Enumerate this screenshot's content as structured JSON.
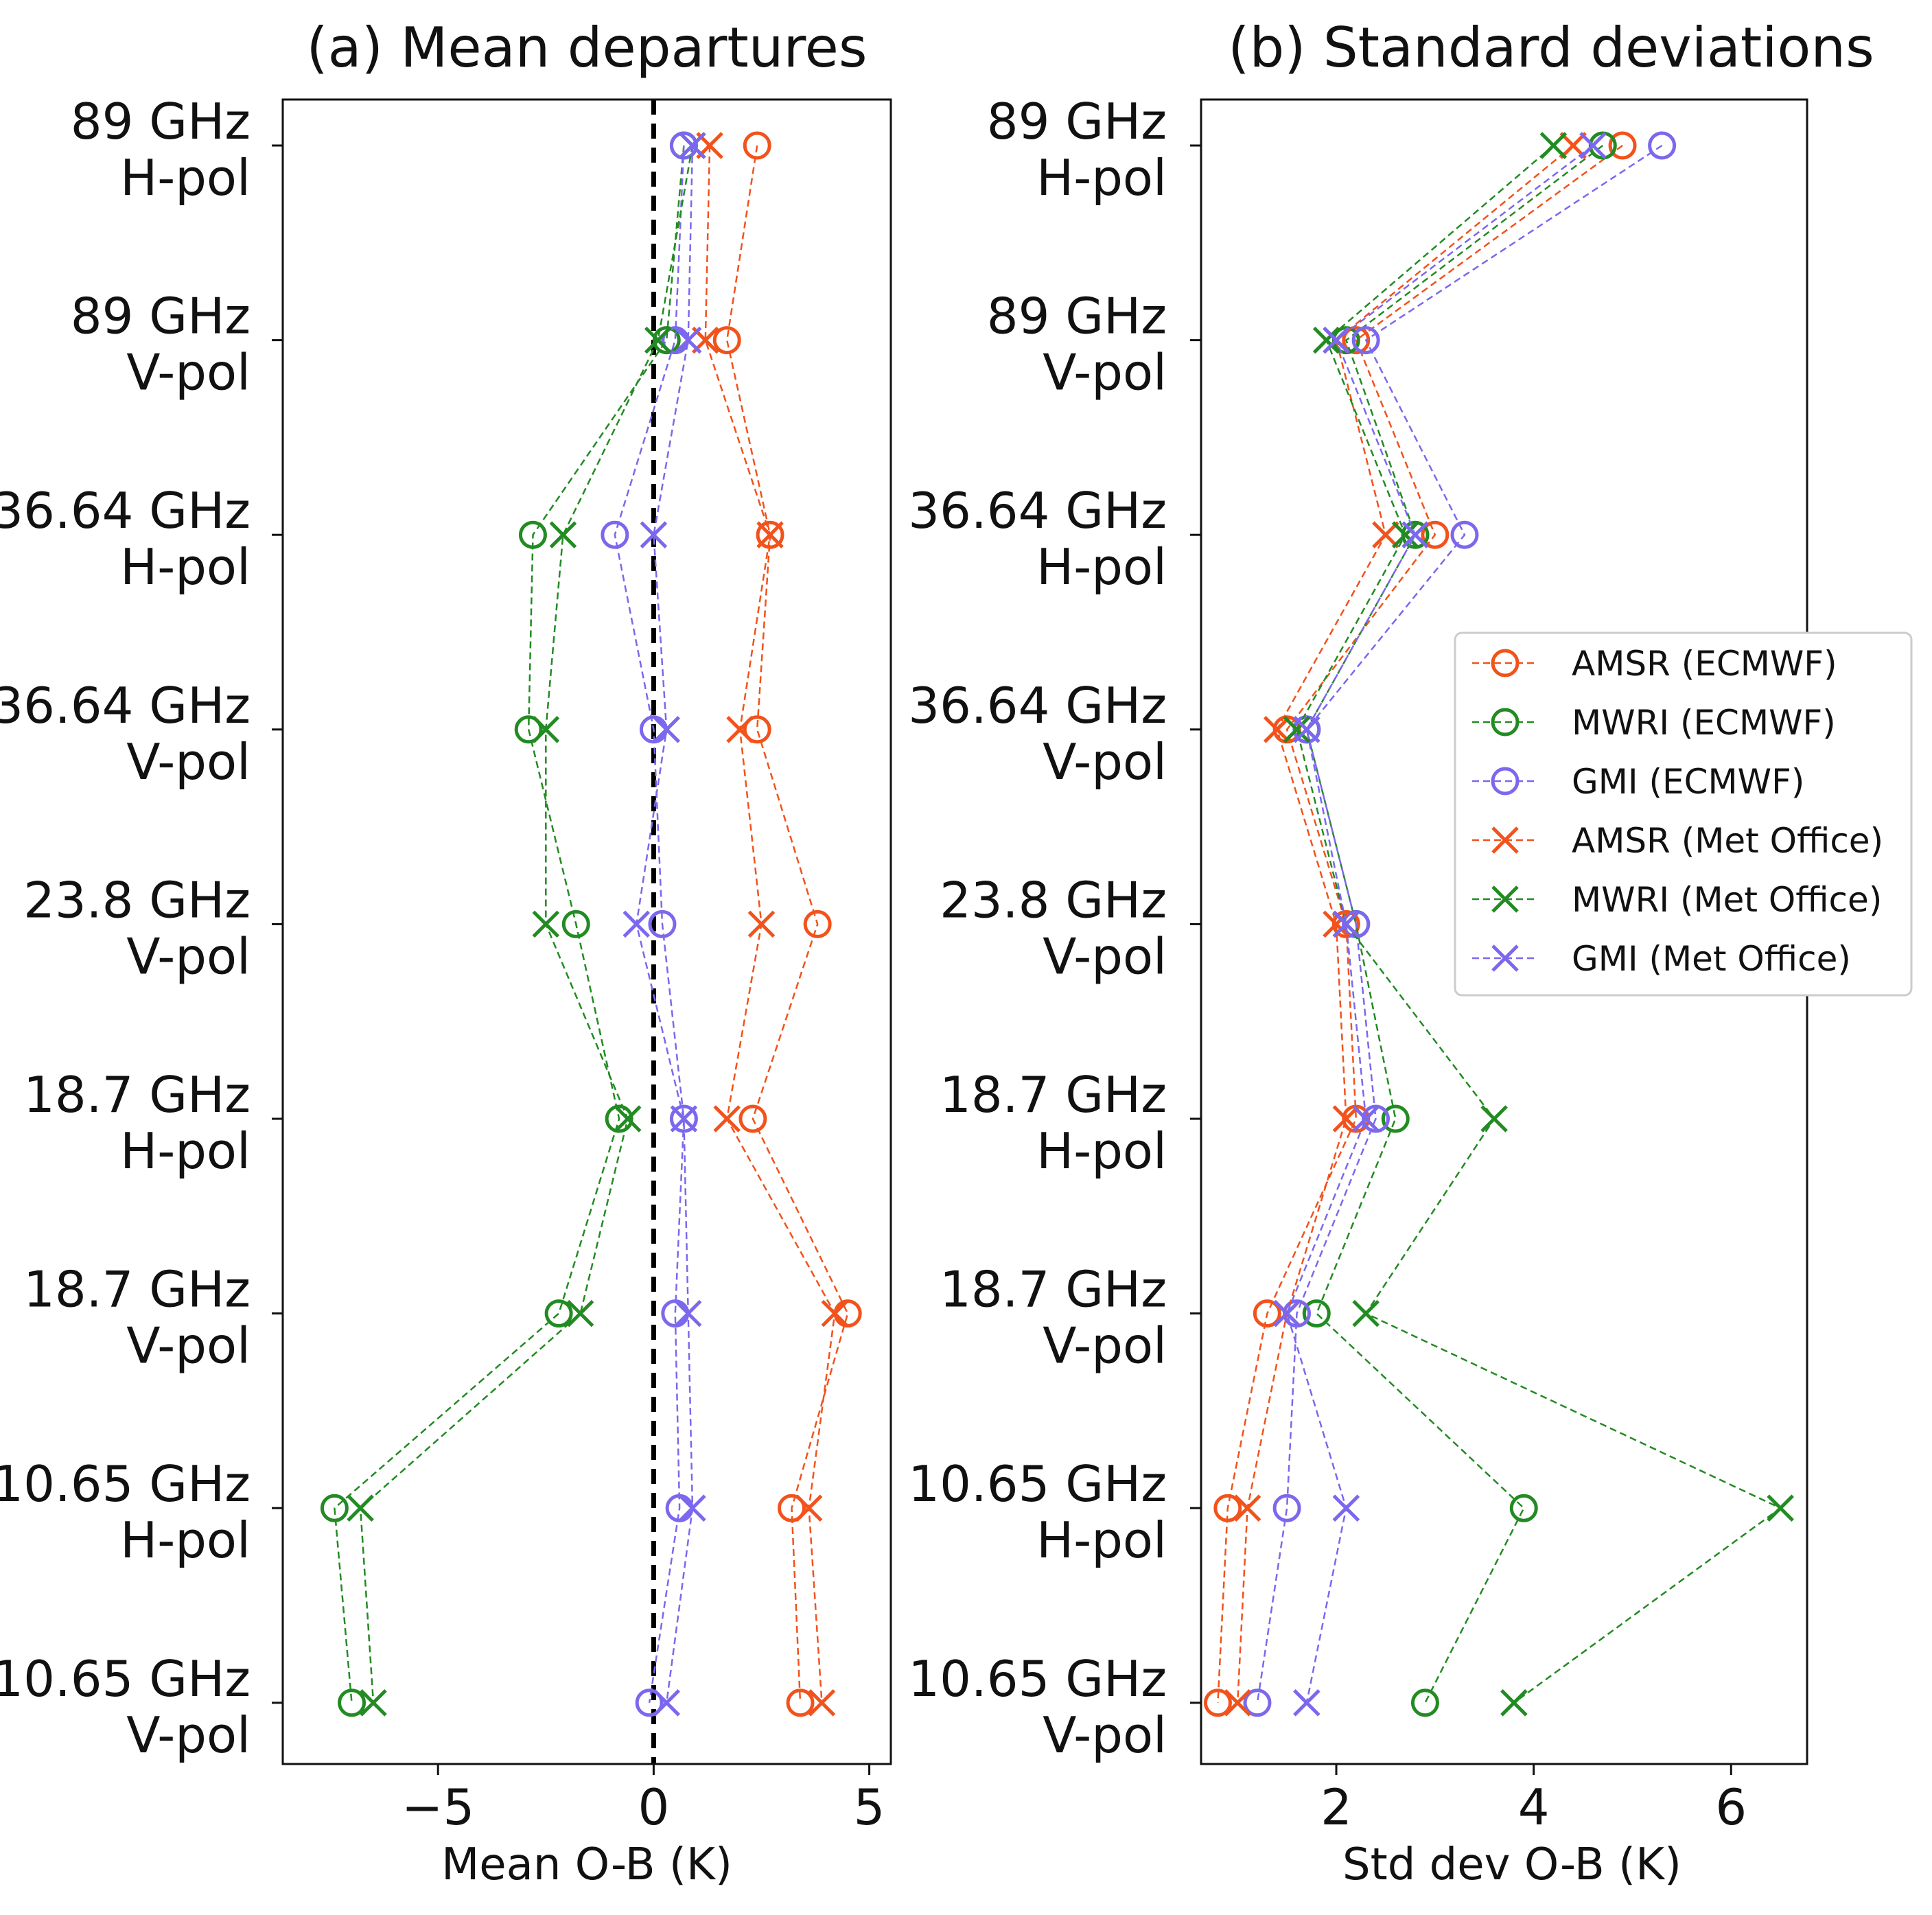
{
  "chart_data": [
    {
      "id": "mean",
      "type": "line",
      "title": "(a) Mean departures",
      "xlabel": "Mean O-B (K)",
      "xlim": [
        -8.6,
        5.5
      ],
      "xticks": [
        -5,
        0,
        5
      ],
      "xtick_labels": [
        "−5",
        "0",
        "5"
      ],
      "zero_line": true,
      "categories": [
        [
          "89 GHz",
          "H-pol"
        ],
        [
          "89 GHz",
          "V-pol"
        ],
        [
          "36.64 GHz",
          "H-pol"
        ],
        [
          "36.64 GHz",
          "V-pol"
        ],
        [
          "23.8 GHz",
          "V-pol"
        ],
        [
          "18.7 GHz",
          "H-pol"
        ],
        [
          "18.7 GHz",
          "V-pol"
        ],
        [
          "10.65 GHz",
          "H-pol"
        ],
        [
          "10.65 GHz",
          "V-pol"
        ]
      ],
      "series": [
        {
          "name": "AMSR (ECMWF)",
          "values": [
            2.4,
            1.7,
            2.7,
            2.4,
            3.8,
            2.3,
            4.5,
            3.2,
            3.4
          ]
        },
        {
          "name": "MWRI (ECMWF)",
          "values": [
            0.7,
            0.3,
            -2.8,
            -2.9,
            -1.8,
            -0.8,
            -2.2,
            -7.4,
            -7.0
          ]
        },
        {
          "name": "GMI (ECMWF)",
          "values": [
            0.7,
            0.5,
            -0.9,
            0.0,
            0.2,
            0.7,
            0.5,
            0.6,
            -0.1
          ]
        },
        {
          "name": "AMSR (Met Office)",
          "values": [
            1.3,
            1.2,
            2.7,
            2.0,
            2.5,
            1.7,
            4.2,
            3.6,
            3.9
          ]
        },
        {
          "name": "MWRI (Met Office)",
          "values": [
            0.9,
            0.1,
            -2.1,
            -2.5,
            -2.5,
            -0.6,
            -1.7,
            -6.8,
            -6.5
          ]
        },
        {
          "name": "GMI (Met Office)",
          "values": [
            0.9,
            0.8,
            0.0,
            0.3,
            -0.4,
            0.7,
            0.8,
            0.9,
            0.3
          ]
        }
      ]
    },
    {
      "id": "std",
      "type": "line",
      "title": "(b) Standard deviations",
      "xlabel": "Std dev O-B (K)",
      "xlim": [
        0.63,
        6.77
      ],
      "xticks": [
        2,
        4,
        6
      ],
      "xtick_labels": [
        "2",
        "4",
        "6"
      ],
      "zero_line": false,
      "categories": [
        [
          "89 GHz",
          "H-pol"
        ],
        [
          "89 GHz",
          "V-pol"
        ],
        [
          "36.64 GHz",
          "H-pol"
        ],
        [
          "36.64 GHz",
          "V-pol"
        ],
        [
          "23.8 GHz",
          "V-pol"
        ],
        [
          "18.7 GHz",
          "H-pol"
        ],
        [
          "18.7 GHz",
          "V-pol"
        ],
        [
          "10.65 GHz",
          "H-pol"
        ],
        [
          "10.65 GHz",
          "V-pol"
        ]
      ],
      "series": [
        {
          "name": "AMSR (ECMWF)",
          "values": [
            4.9,
            2.2,
            3.0,
            1.5,
            2.1,
            2.2,
            1.3,
            0.9,
            0.8
          ]
        },
        {
          "name": "MWRI (ECMWF)",
          "values": [
            4.7,
            2.1,
            2.8,
            1.7,
            2.2,
            2.6,
            1.8,
            3.9,
            2.9
          ]
        },
        {
          "name": "GMI (ECMWF)",
          "values": [
            5.3,
            2.3,
            3.3,
            1.7,
            2.2,
            2.4,
            1.6,
            1.5,
            1.2
          ]
        },
        {
          "name": "AMSR (Met Office)",
          "values": [
            4.4,
            2.0,
            2.5,
            1.4,
            2.0,
            2.1,
            1.5,
            1.1,
            1.0
          ]
        },
        {
          "name": "MWRI (Met Office)",
          "values": [
            4.2,
            1.9,
            2.7,
            1.6,
            2.1,
            3.6,
            2.3,
            6.5,
            3.8
          ]
        },
        {
          "name": "GMI (Met Office)",
          "values": [
            4.6,
            2.0,
            2.8,
            1.7,
            2.1,
            2.3,
            1.5,
            2.1,
            1.7
          ]
        }
      ]
    }
  ],
  "legend": {
    "placement": "right-middle of panel (b)",
    "entries": [
      {
        "label": "AMSR (ECMWF)",
        "color": "#f2521b",
        "marker": "circle"
      },
      {
        "label": "MWRI (ECMWF)",
        "color": "#228b22",
        "marker": "circle"
      },
      {
        "label": "GMI (ECMWF)",
        "color": "#7b68ee",
        "marker": "circle"
      },
      {
        "label": "AMSR (Met Office)",
        "color": "#f2521b",
        "marker": "cross"
      },
      {
        "label": "MWRI (Met Office)",
        "color": "#228b22",
        "marker": "cross"
      },
      {
        "label": "GMI (Met Office)",
        "color": "#7b68ee",
        "marker": "cross"
      }
    ]
  },
  "colors": {
    "amsr": "#f2521b",
    "mwri": "#228b22",
    "gmi": "#7b68ee",
    "axis": "#111111"
  }
}
